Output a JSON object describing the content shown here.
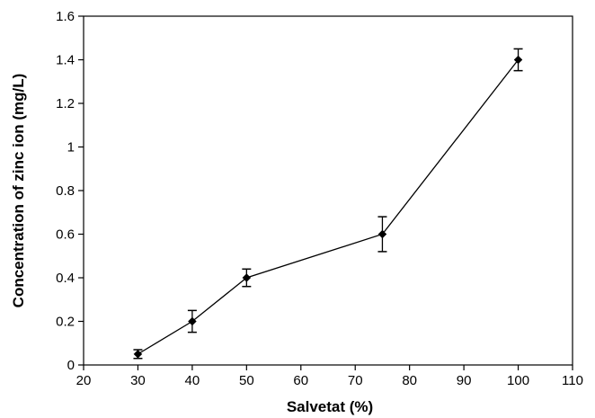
{
  "chart_data": {
    "type": "line",
    "title": "",
    "xlabel": "Salvetat (%)",
    "ylabel": "Concentration of zinc ion (mg/L)",
    "xlim": [
      20,
      110
    ],
    "ylim": [
      0,
      1.6
    ],
    "x_ticks": [
      20,
      30,
      40,
      50,
      60,
      70,
      80,
      90,
      100,
      110
    ],
    "y_ticks": [
      0,
      0.2,
      0.4,
      0.6,
      0.8,
      1,
      1.2,
      1.4,
      1.6
    ],
    "x_tick_labels": [
      "20",
      "30",
      "40",
      "50",
      "60",
      "70",
      "80",
      "90",
      "100",
      "110"
    ],
    "y_tick_labels": [
      "0",
      "0.2",
      "0.4",
      "0.6",
      "0.8",
      "1",
      "1.2",
      "1.4",
      "1.6"
    ],
    "grid": false,
    "legend": "none",
    "series": [
      {
        "x": [
          30,
          40,
          50,
          75,
          100
        ],
        "values": [
          0.05,
          0.2,
          0.4,
          0.6,
          1.4
        ],
        "error": [
          0.02,
          0.05,
          0.04,
          0.08,
          0.05
        ],
        "marker": "diamond",
        "color": "#000000"
      }
    ]
  }
}
